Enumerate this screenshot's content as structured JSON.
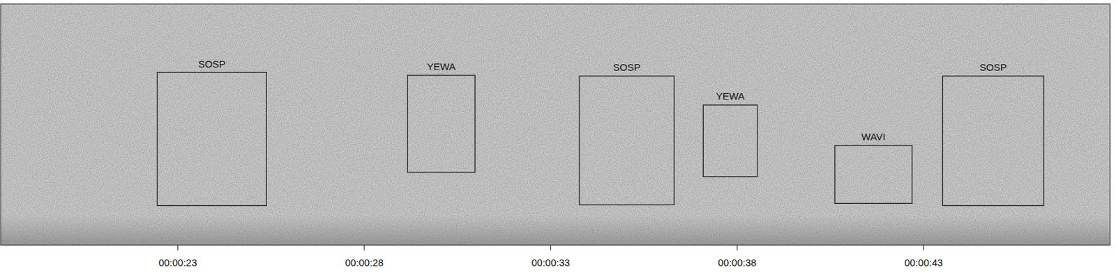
{
  "chart_data": {
    "type": "spectrogram",
    "xlim": [
      18.25,
      48.0
    ],
    "xticks": [
      {
        "value": 23,
        "label": "00:00:23"
      },
      {
        "value": 28,
        "label": "00:00:28"
      },
      {
        "value": 33,
        "label": "00:00:33"
      },
      {
        "value": 38,
        "label": "00:00:38"
      },
      {
        "value": 43,
        "label": "00:00:43"
      }
    ],
    "ylim": [
      0,
      1
    ],
    "tick_labels": "x",
    "annotations": [
      {
        "label": "SOSP",
        "x": [
          22.45,
          25.38
        ],
        "y": [
          0.164,
          0.716
        ]
      },
      {
        "label": "YEWA",
        "x": [
          29.16,
          30.97
        ],
        "y": [
          0.302,
          0.704
        ]
      },
      {
        "label": "SOSP",
        "x": [
          33.77,
          36.31
        ],
        "y": [
          0.167,
          0.701
        ]
      },
      {
        "label": "YEWA",
        "x": [
          37.09,
          38.54
        ],
        "y": [
          0.284,
          0.581
        ]
      },
      {
        "label": "WAVI",
        "x": [
          40.62,
          42.69
        ],
        "y": [
          0.173,
          0.413
        ]
      },
      {
        "label": "SOSP",
        "x": [
          43.51,
          46.22
        ],
        "y": [
          0.164,
          0.701
        ]
      }
    ]
  }
}
